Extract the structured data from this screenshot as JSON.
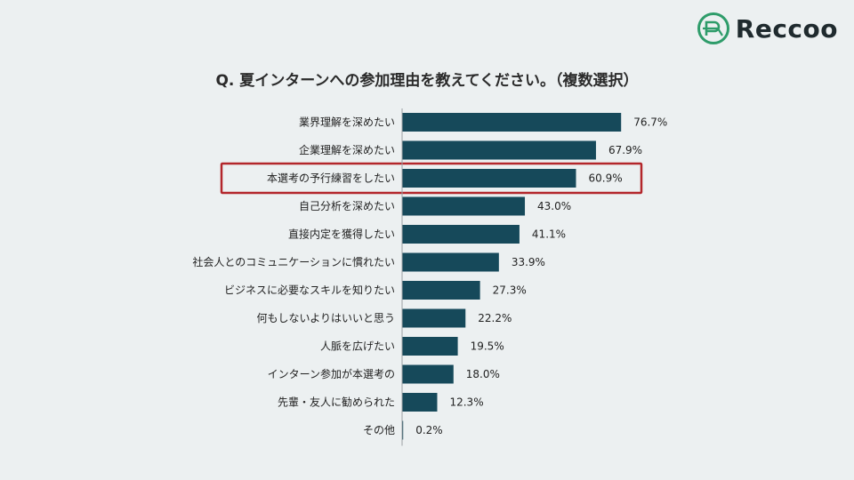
{
  "brand": {
    "name": "Reccoo",
    "icon": "reccoo-logo-icon",
    "icon_color": "#2e9c6a"
  },
  "chart_data": {
    "type": "bar",
    "orientation": "horizontal",
    "title": "Q. 夏インターンへの参加理由を教えてください。（複数選択）",
    "categories": [
      "業界理解を深めたい",
      "企業理解を深めたい",
      "本選考の予行練習をしたい",
      "自己分析を深めたい",
      "直接内定を獲得したい",
      "社会人とのコミュニケーションに慣れたい",
      "ビジネスに必要なスキルを知りたい",
      "何もしないよりはいいと思う",
      "人脈を広げたい",
      "インターン参加が本選考の",
      "先輩・友人に勧められた",
      "その他"
    ],
    "values": [
      76.7,
      67.9,
      60.9,
      43.0,
      41.1,
      33.9,
      27.3,
      22.2,
      19.5,
      18.0,
      12.3,
      0.2
    ],
    "value_labels": [
      "76.7%",
      "67.9%",
      "60.9%",
      "43.0%",
      "41.1%",
      "33.9%",
      "27.3%",
      "22.2%",
      "19.5%",
      "18.0%",
      "12.3%",
      "0.2%"
    ],
    "unit": "%",
    "highlighted_category": "本選考の予行練習をしたい",
    "bar_color": "#16495a",
    "highlight_color": "#b3262b",
    "grid": false
  }
}
